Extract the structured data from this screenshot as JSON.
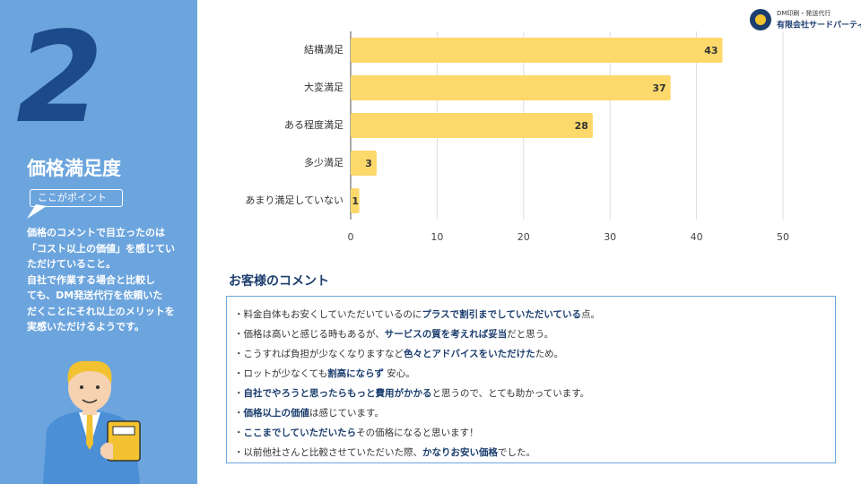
{
  "chart_data": {
    "type": "hbar",
    "categories": [
      "結構満足",
      "大変満足",
      "ある程度満足",
      "多少満足",
      "あまり満足していない"
    ],
    "values": [
      43,
      37,
      28,
      3,
      1
    ],
    "color": "#fdd86b",
    "xlim": [
      0,
      50
    ],
    "xticks": [
      0,
      10,
      20,
      30,
      40,
      50
    ],
    "grid": true
  },
  "sidebar": {
    "number": "2",
    "title": "価格満足度",
    "badge": "ここがポイント",
    "lines": [
      "価格のコメントで目立ったのは",
      "「コスト以上の価値」を感じてい",
      "ただけていること。",
      "自社で作業する場合と比較し",
      "ても、DM発送代行を依頼いた",
      "だくことにそれ以上のメリットを",
      "実感いただけるようです。"
    ]
  },
  "logo": {
    "tagline": "DM印刷・発送代行",
    "company": "有限会社サードパーティー"
  },
  "comments": {
    "heading": "お客様のコメント",
    "items": [
      [
        {
          "text": "・料金自体もお安くしていただいているのに",
          "bold": false
        },
        {
          "text": "プラスで割引までしていただいている",
          "bold": true
        },
        {
          "text": "点。",
          "bold": false
        }
      ],
      [
        {
          "text": "・価格は高いと感じる時もあるが、",
          "bold": false
        },
        {
          "text": "サービスの質を考えれば妥当",
          "bold": true
        },
        {
          "text": "だと思う。",
          "bold": false
        }
      ],
      [
        {
          "text": "・こうすれば負担が少なくなりますなど",
          "bold": false
        },
        {
          "text": "色々とアドバイスをいただけた",
          "bold": true
        },
        {
          "text": "ため。",
          "bold": false
        }
      ],
      [
        {
          "text": "・ロットが少なくても",
          "bold": false
        },
        {
          "text": "割高にならず",
          "bold": true
        },
        {
          "text": " 安心。",
          "bold": false
        }
      ],
      [
        {
          "text": "・",
          "bold": false
        },
        {
          "text": "自社でやろうと思ったらもっと費用がかかる",
          "bold": true
        },
        {
          "text": "と思うので、とても助かっています。",
          "bold": false
        }
      ],
      [
        {
          "text": "・",
          "bold": false
        },
        {
          "text": "価格以上の価値",
          "bold": true
        },
        {
          "text": "は感じています。",
          "bold": false
        }
      ],
      [
        {
          "text": "・",
          "bold": false
        },
        {
          "text": "ここまでしていただいたら",
          "bold": true
        },
        {
          "text": "その価格になると思います！",
          "bold": false
        }
      ],
      [
        {
          "text": "・以前他社さんと比較させていただいた際、",
          "bold": false
        },
        {
          "text": "かなりお安い価格",
          "bold": true
        },
        {
          "text": "でした。",
          "bold": false
        }
      ]
    ]
  }
}
